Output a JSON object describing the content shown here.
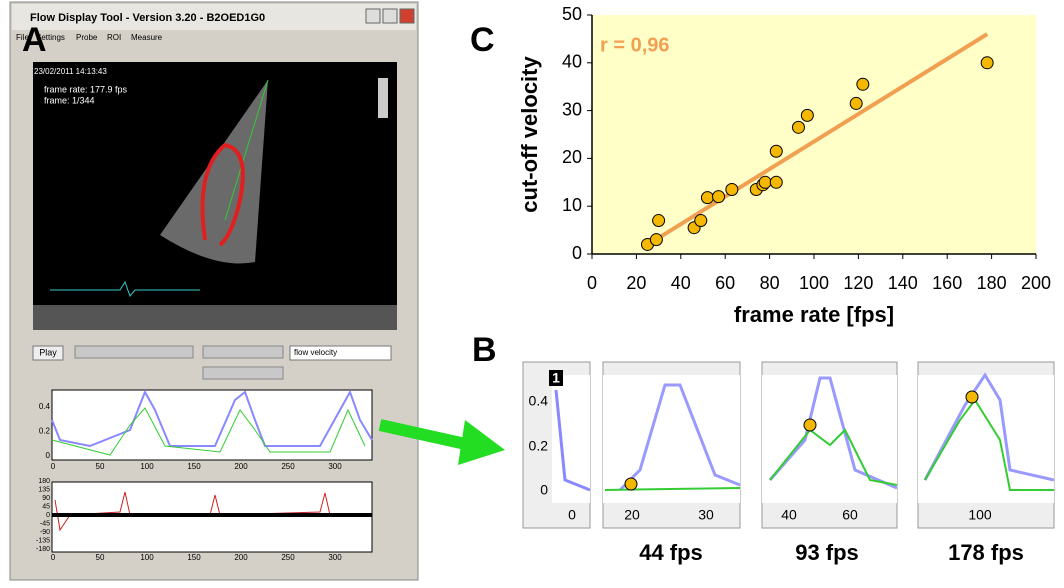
{
  "chart_data": {
    "type": "scatter",
    "x": [
      25,
      29,
      30,
      46,
      49,
      52,
      57,
      63,
      74,
      77,
      78,
      83,
      83,
      93,
      97,
      119,
      122,
      178
    ],
    "values": [
      2,
      3,
      7,
      5.5,
      7,
      11.8,
      12,
      13.5,
      13.5,
      14.5,
      15,
      15,
      21.5,
      26.5,
      29,
      31.5,
      35.5,
      40
    ],
    "color": "#f5b800",
    "fit": {
      "x": [
        27,
        178
      ],
      "values": [
        2.5,
        46
      ],
      "color": "#f0a050"
    },
    "annotation": "r = 0,96",
    "xlabel": "frame rate [fps]",
    "ylabel": "cut-off velocity",
    "xlim": [
      0,
      200
    ],
    "xticks": [
      0,
      20,
      40,
      60,
      80,
      100,
      120,
      140,
      160,
      180,
      200
    ],
    "ylim": [
      0,
      50
    ],
    "yticks": [
      0,
      10,
      20,
      30,
      40,
      50
    ],
    "background": "#ffffc8"
  },
  "panels": {
    "a": "A",
    "b": "B",
    "c": "C"
  },
  "screenshot": {
    "title": "Flow Display Tool - Version 3.20 - B2OED1G0",
    "menu": [
      "File",
      "Settings",
      "Probe",
      "ROI",
      "Measure"
    ],
    "timestamp": "23/02/2011 14:13:43",
    "frame_rate": "frame rate: 177.9 fps",
    "frame": "frame: 1/344",
    "play": "Play",
    "dropdown": "flow velocity",
    "plot1": {
      "yticks": [
        "0.4",
        "0.2",
        "0"
      ]
    },
    "plot2": {
      "yticks": [
        "180",
        "135",
        "90",
        "45",
        "0",
        "-45",
        "-90",
        "-135",
        "-180"
      ]
    },
    "xticks": [
      "0",
      "50",
      "100",
      "150",
      "200",
      "250",
      "300"
    ]
  },
  "thumbnails": {
    "first": {
      "marker": "1",
      "yticks": [
        "0.4",
        "0.2",
        "0"
      ],
      "xtick": "0"
    },
    "t44": {
      "xticks": [
        "20",
        "30"
      ],
      "caption": "44 fps"
    },
    "t93": {
      "xticks": [
        "40",
        "60"
      ],
      "caption": "93 fps"
    },
    "t178": {
      "xticks": [
        "100"
      ],
      "caption": "178 fps"
    }
  }
}
